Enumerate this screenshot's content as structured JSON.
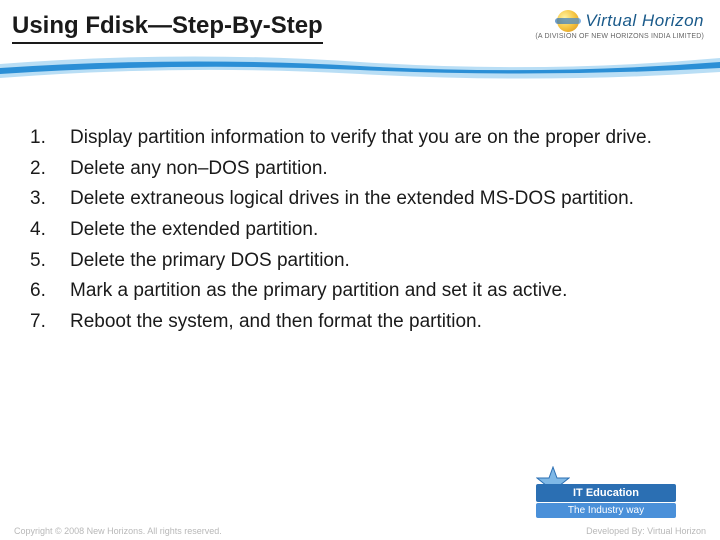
{
  "header": {
    "title": "Using Fdisk—Step-By-Step",
    "brand_name": "Virtual Horizon",
    "brand_sub": "(A DIVISION OF NEW HORIZONS INDIA LIMITED)"
  },
  "colors": {
    "title_underline": "#1a1a1a",
    "wave_light": "#b9def5",
    "wave_dark": "#2b8fd6",
    "banner_primary": "#2b6fb3",
    "banner_secondary": "#4a90d9",
    "star_fill": "#7fb8e6",
    "text": "#1a1a1a",
    "footer_text": "#b8b8b8",
    "background": "#ffffff"
  },
  "steps": [
    {
      "num": "1.",
      "text": "Display partition information to verify that you are on the proper drive."
    },
    {
      "num": "2.",
      "text": "Delete any non–DOS partition."
    },
    {
      "num": "3.",
      "text": "Delete extraneous logical drives in the extended MS-DOS partition."
    },
    {
      "num": "4.",
      "text": "Delete the extended partition."
    },
    {
      "num": "5.",
      "text": "Delete the primary DOS partition."
    },
    {
      "num": "6.",
      "text": "Mark a partition as the primary partition and set it as active."
    },
    {
      "num": "7.",
      "text": "Reboot the system, and then format the partition."
    }
  ],
  "footer": {
    "banner_line1": "IT Education",
    "banner_line2": "The Industry way",
    "copyright": "Copyright © 2008 New Horizons. All rights reserved.",
    "devby": "Developed By: Virtual Horizon"
  }
}
